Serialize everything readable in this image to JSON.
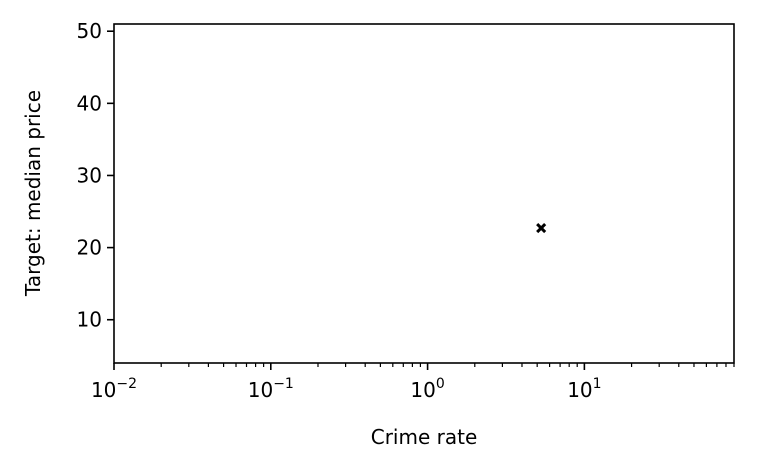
{
  "chart_data": {
    "type": "scatter",
    "title": "",
    "xlabel": "Crime rate",
    "ylabel": "Target: median price",
    "xscale": "log",
    "xlim": [
      0.01,
      90
    ],
    "ylim": [
      4,
      51
    ],
    "grid": false,
    "x_ticks": [
      {
        "value": 0.01,
        "base": "10",
        "exp": "−2"
      },
      {
        "value": 0.1,
        "base": "10",
        "exp": "−1"
      },
      {
        "value": 1,
        "base": "10",
        "exp": "0"
      },
      {
        "value": 10,
        "base": "10",
        "exp": "1"
      }
    ],
    "y_ticks": [
      {
        "value": 10,
        "label": "10"
      },
      {
        "value": 20,
        "label": "20"
      },
      {
        "value": 30,
        "label": "30"
      },
      {
        "value": 40,
        "label": "40"
      },
      {
        "value": 50,
        "label": "50"
      }
    ],
    "series": [
      {
        "marker": "x",
        "color": "#000000",
        "points": [
          {
            "x": 5.3,
            "y": 22.7
          }
        ]
      }
    ]
  }
}
